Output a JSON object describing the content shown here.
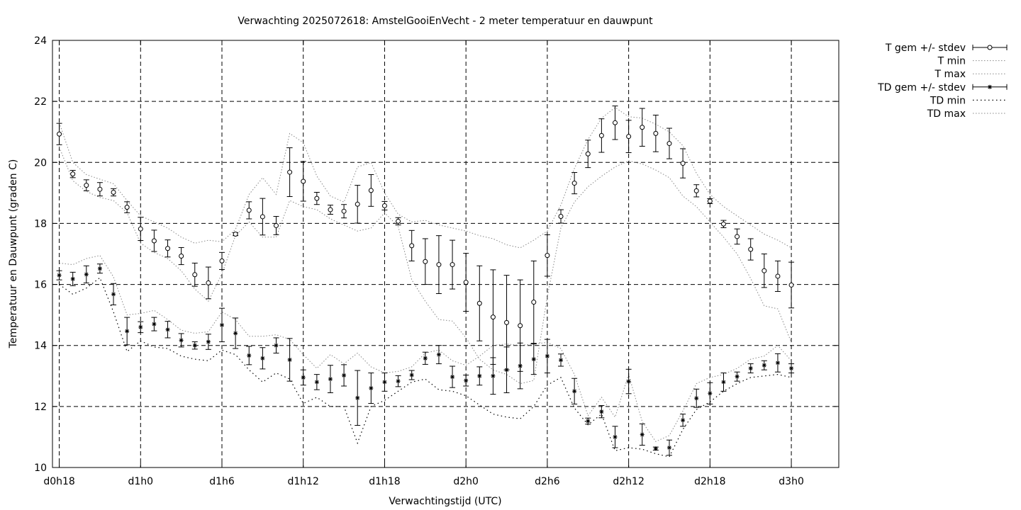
{
  "chart_data": {
    "type": "line",
    "title": "Verwachting 2025072618: AmstelGooiEnVecht - 2 meter temperatuur en dauwpunt",
    "xlabel": "Verwachtingstijd (UTC)",
    "ylabel": "Temperatuur en Dauwpunt (graden C)",
    "ylim": [
      10,
      24
    ],
    "yticks": [
      10,
      12,
      14,
      16,
      18,
      20,
      22,
      24
    ],
    "xlim": [
      -0.5,
      57.5
    ],
    "xticks": [
      {
        "x": 0,
        "label": "d0h18"
      },
      {
        "x": 6,
        "label": "d1h0"
      },
      {
        "x": 12,
        "label": "d1h6"
      },
      {
        "x": 18,
        "label": "d1h12"
      },
      {
        "x": 24,
        "label": "d1h18"
      },
      {
        "x": 30,
        "label": "d2h0"
      },
      {
        "x": 36,
        "label": "d2h6"
      },
      {
        "x": 42,
        "label": "d2h12"
      },
      {
        "x": 48,
        "label": "d2h18"
      },
      {
        "x": 54,
        "label": "d3h0"
      }
    ],
    "grid": true,
    "legend_position": "outside-top-right",
    "x": [
      0,
      1,
      2,
      3,
      4,
      5,
      6,
      7,
      8,
      9,
      10,
      11,
      12,
      13,
      14,
      15,
      16,
      17,
      18,
      19,
      20,
      21,
      22,
      23,
      24,
      25,
      26,
      27,
      28,
      29,
      30,
      31,
      32,
      33,
      34,
      35,
      36,
      37,
      38,
      39,
      40,
      41,
      42,
      43,
      44,
      45,
      46,
      47,
      48,
      49,
      50,
      51,
      52,
      53,
      54
    ],
    "series": [
      {
        "name": "T gem +/- stdev",
        "marker": "circle",
        "kind": "errorbar",
        "values": [
          20.93,
          19.62,
          19.25,
          19.12,
          19.02,
          18.53,
          17.82,
          17.43,
          17.18,
          16.93,
          16.32,
          16.05,
          16.77,
          17.65,
          18.43,
          18.22,
          17.93,
          19.68,
          19.38,
          18.82,
          18.45,
          18.4,
          18.63,
          19.08,
          18.58,
          18.07,
          17.27,
          16.75,
          16.65,
          16.65,
          16.07,
          15.38,
          14.93,
          14.75,
          14.65,
          15.42,
          16.95,
          18.23,
          19.32,
          20.28,
          20.88,
          21.3,
          20.85,
          21.15,
          20.95,
          20.62,
          19.97,
          19.07,
          18.73,
          17.98,
          17.57,
          17.15,
          16.45,
          16.27,
          15.98
        ],
        "stdev": [
          0.35,
          0.12,
          0.18,
          0.22,
          0.12,
          0.18,
          0.38,
          0.35,
          0.28,
          0.28,
          0.38,
          0.52,
          0.28,
          0.05,
          0.28,
          0.6,
          0.3,
          0.8,
          0.65,
          0.2,
          0.15,
          0.22,
          0.62,
          0.52,
          0.14,
          0.12,
          0.5,
          0.75,
          0.95,
          0.8,
          0.95,
          1.23,
          1.55,
          1.55,
          1.5,
          1.35,
          0.68,
          0.22,
          0.35,
          0.45,
          0.55,
          0.55,
          0.53,
          0.62,
          0.6,
          0.5,
          0.48,
          0.2,
          0.08,
          0.12,
          0.25,
          0.35,
          0.55,
          0.5,
          0.75
        ]
      },
      {
        "name": "T min",
        "line": "dotted",
        "values": [
          20.5,
          19.4,
          19.05,
          18.85,
          18.75,
          18.35,
          17.35,
          17.05,
          16.85,
          16.45,
          15.85,
          15.45,
          16.35,
          17.6,
          18.05,
          17.55,
          17.55,
          18.75,
          18.55,
          18.45,
          18.15,
          17.95,
          17.75,
          17.85,
          18.35,
          17.9,
          16.15,
          15.45,
          14.85,
          14.8,
          14.25,
          13.55,
          13.2,
          13.05,
          12.75,
          12.85,
          15.6,
          17.85,
          18.7,
          19.2,
          19.55,
          19.85,
          20.05,
          19.95,
          19.75,
          19.5,
          18.9,
          18.55,
          18.05,
          17.55,
          17.0,
          16.2,
          15.3,
          15.2,
          14.1
        ]
      },
      {
        "name": "T max",
        "line": "dotted",
        "values": [
          21.3,
          20.0,
          19.6,
          19.45,
          19.3,
          18.75,
          18.25,
          18.05,
          17.85,
          17.55,
          17.35,
          17.45,
          17.4,
          17.8,
          18.95,
          19.5,
          18.95,
          20.95,
          20.65,
          19.55,
          18.9,
          18.7,
          19.85,
          20.0,
          19.0,
          18.3,
          18.05,
          18.1,
          17.95,
          17.85,
          17.75,
          17.6,
          17.5,
          17.3,
          17.2,
          17.45,
          17.75,
          18.6,
          19.8,
          20.75,
          21.45,
          21.8,
          21.5,
          21.45,
          21.25,
          21.0,
          20.55,
          19.65,
          18.95,
          18.55,
          18.25,
          17.95,
          17.65,
          17.45,
          17.2
        ]
      },
      {
        "name": "TD gem +/- stdev",
        "marker": "star",
        "kind": "errorbar",
        "values": [
          16.3,
          16.18,
          16.33,
          16.52,
          15.68,
          14.47,
          14.6,
          14.7,
          14.52,
          14.17,
          14.0,
          14.12,
          14.67,
          14.4,
          13.67,
          13.58,
          14.0,
          13.53,
          12.95,
          12.8,
          12.9,
          13.02,
          12.28,
          12.6,
          12.8,
          12.83,
          13.03,
          13.58,
          13.7,
          12.97,
          12.85,
          13.0,
          13.0,
          13.2,
          13.33,
          13.55,
          13.65,
          13.52,
          12.5,
          11.52,
          11.83,
          11.0,
          12.82,
          11.08,
          10.62,
          10.65,
          11.55,
          12.27,
          12.43,
          12.8,
          12.98,
          13.25,
          13.35,
          13.43,
          13.25
        ]
      },
      {
        "name": "TD min",
        "line": "dotted",
        "values": [
          16.0,
          15.68,
          15.88,
          16.22,
          15.1,
          13.8,
          14.15,
          13.95,
          13.9,
          13.65,
          13.55,
          13.5,
          13.85,
          13.7,
          13.2,
          12.8,
          13.1,
          12.9,
          12.1,
          12.3,
          12.0,
          12.0,
          10.8,
          12.0,
          12.2,
          12.5,
          12.8,
          12.9,
          12.55,
          12.5,
          12.35,
          12.05,
          11.75,
          11.65,
          11.6,
          12.0,
          12.7,
          12.95,
          11.95,
          11.4,
          11.75,
          10.55,
          10.65,
          10.6,
          10.45,
          10.35,
          11.25,
          11.9,
          12.15,
          12.5,
          12.75,
          12.95,
          13.0,
          13.05,
          12.95
        ]
      },
      {
        "name": "TD max",
        "line": "dotted",
        "values": [
          16.7,
          16.65,
          16.85,
          16.95,
          16.25,
          15.0,
          15.05,
          15.15,
          14.85,
          14.5,
          14.4,
          14.45,
          15.1,
          14.85,
          14.3,
          14.3,
          14.35,
          14.2,
          13.7,
          13.25,
          13.7,
          13.4,
          13.75,
          13.3,
          13.1,
          13.15,
          13.3,
          13.75,
          13.85,
          13.5,
          13.35,
          13.65,
          14.0,
          14.05,
          14.0,
          14.05,
          14.1,
          13.9,
          13.05,
          11.7,
          12.3,
          11.65,
          13.05,
          11.5,
          10.85,
          11.05,
          11.85,
          12.75,
          12.95,
          13.05,
          13.25,
          13.55,
          13.65,
          14.0,
          13.5
        ]
      }
    ],
    "td_stdev": [
      0.15,
      0.22,
      0.28,
      0.15,
      0.35,
      0.45,
      0.18,
      0.22,
      0.27,
      0.22,
      0.12,
      0.25,
      0.55,
      0.5,
      0.3,
      0.35,
      0.25,
      0.7,
      0.25,
      0.25,
      0.45,
      0.35,
      0.9,
      0.5,
      0.3,
      0.18,
      0.15,
      0.2,
      0.3,
      0.35,
      0.18,
      0.3,
      0.6,
      0.75,
      0.75,
      0.5,
      0.55,
      0.2,
      0.42,
      0.1,
      0.2,
      0.35,
      0.4,
      0.35,
      0.05,
      0.25,
      0.2,
      0.3,
      0.35,
      0.3,
      0.15,
      0.15,
      0.15,
      0.3,
      0.15
    ]
  }
}
